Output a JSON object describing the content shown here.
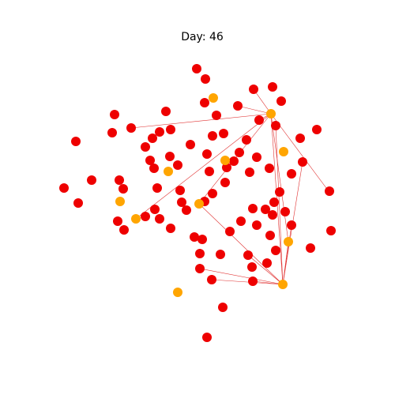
{
  "title": "Day: 46",
  "colors": {
    "infected": "#ee0000",
    "recovered": "#ffa500"
  }
}
